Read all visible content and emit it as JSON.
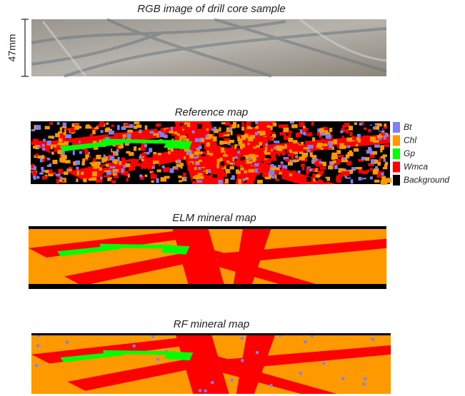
{
  "figure": {
    "panels": [
      {
        "title": "RGB image of drill core sample",
        "scale_label": "47mm"
      },
      {
        "title": "Reference map"
      },
      {
        "title": "ELM mineral map"
      },
      {
        "title": "RF mineral map"
      }
    ],
    "legend": [
      {
        "label": "Bt",
        "color": "#8080f0"
      },
      {
        "label": "Chl",
        "color": "#ff9900"
      },
      {
        "label": "Gp",
        "color": "#00ff00"
      },
      {
        "label": "Wmca",
        "color": "#ff0000"
      },
      {
        "label": "Background",
        "color": "#000000"
      }
    ]
  }
}
